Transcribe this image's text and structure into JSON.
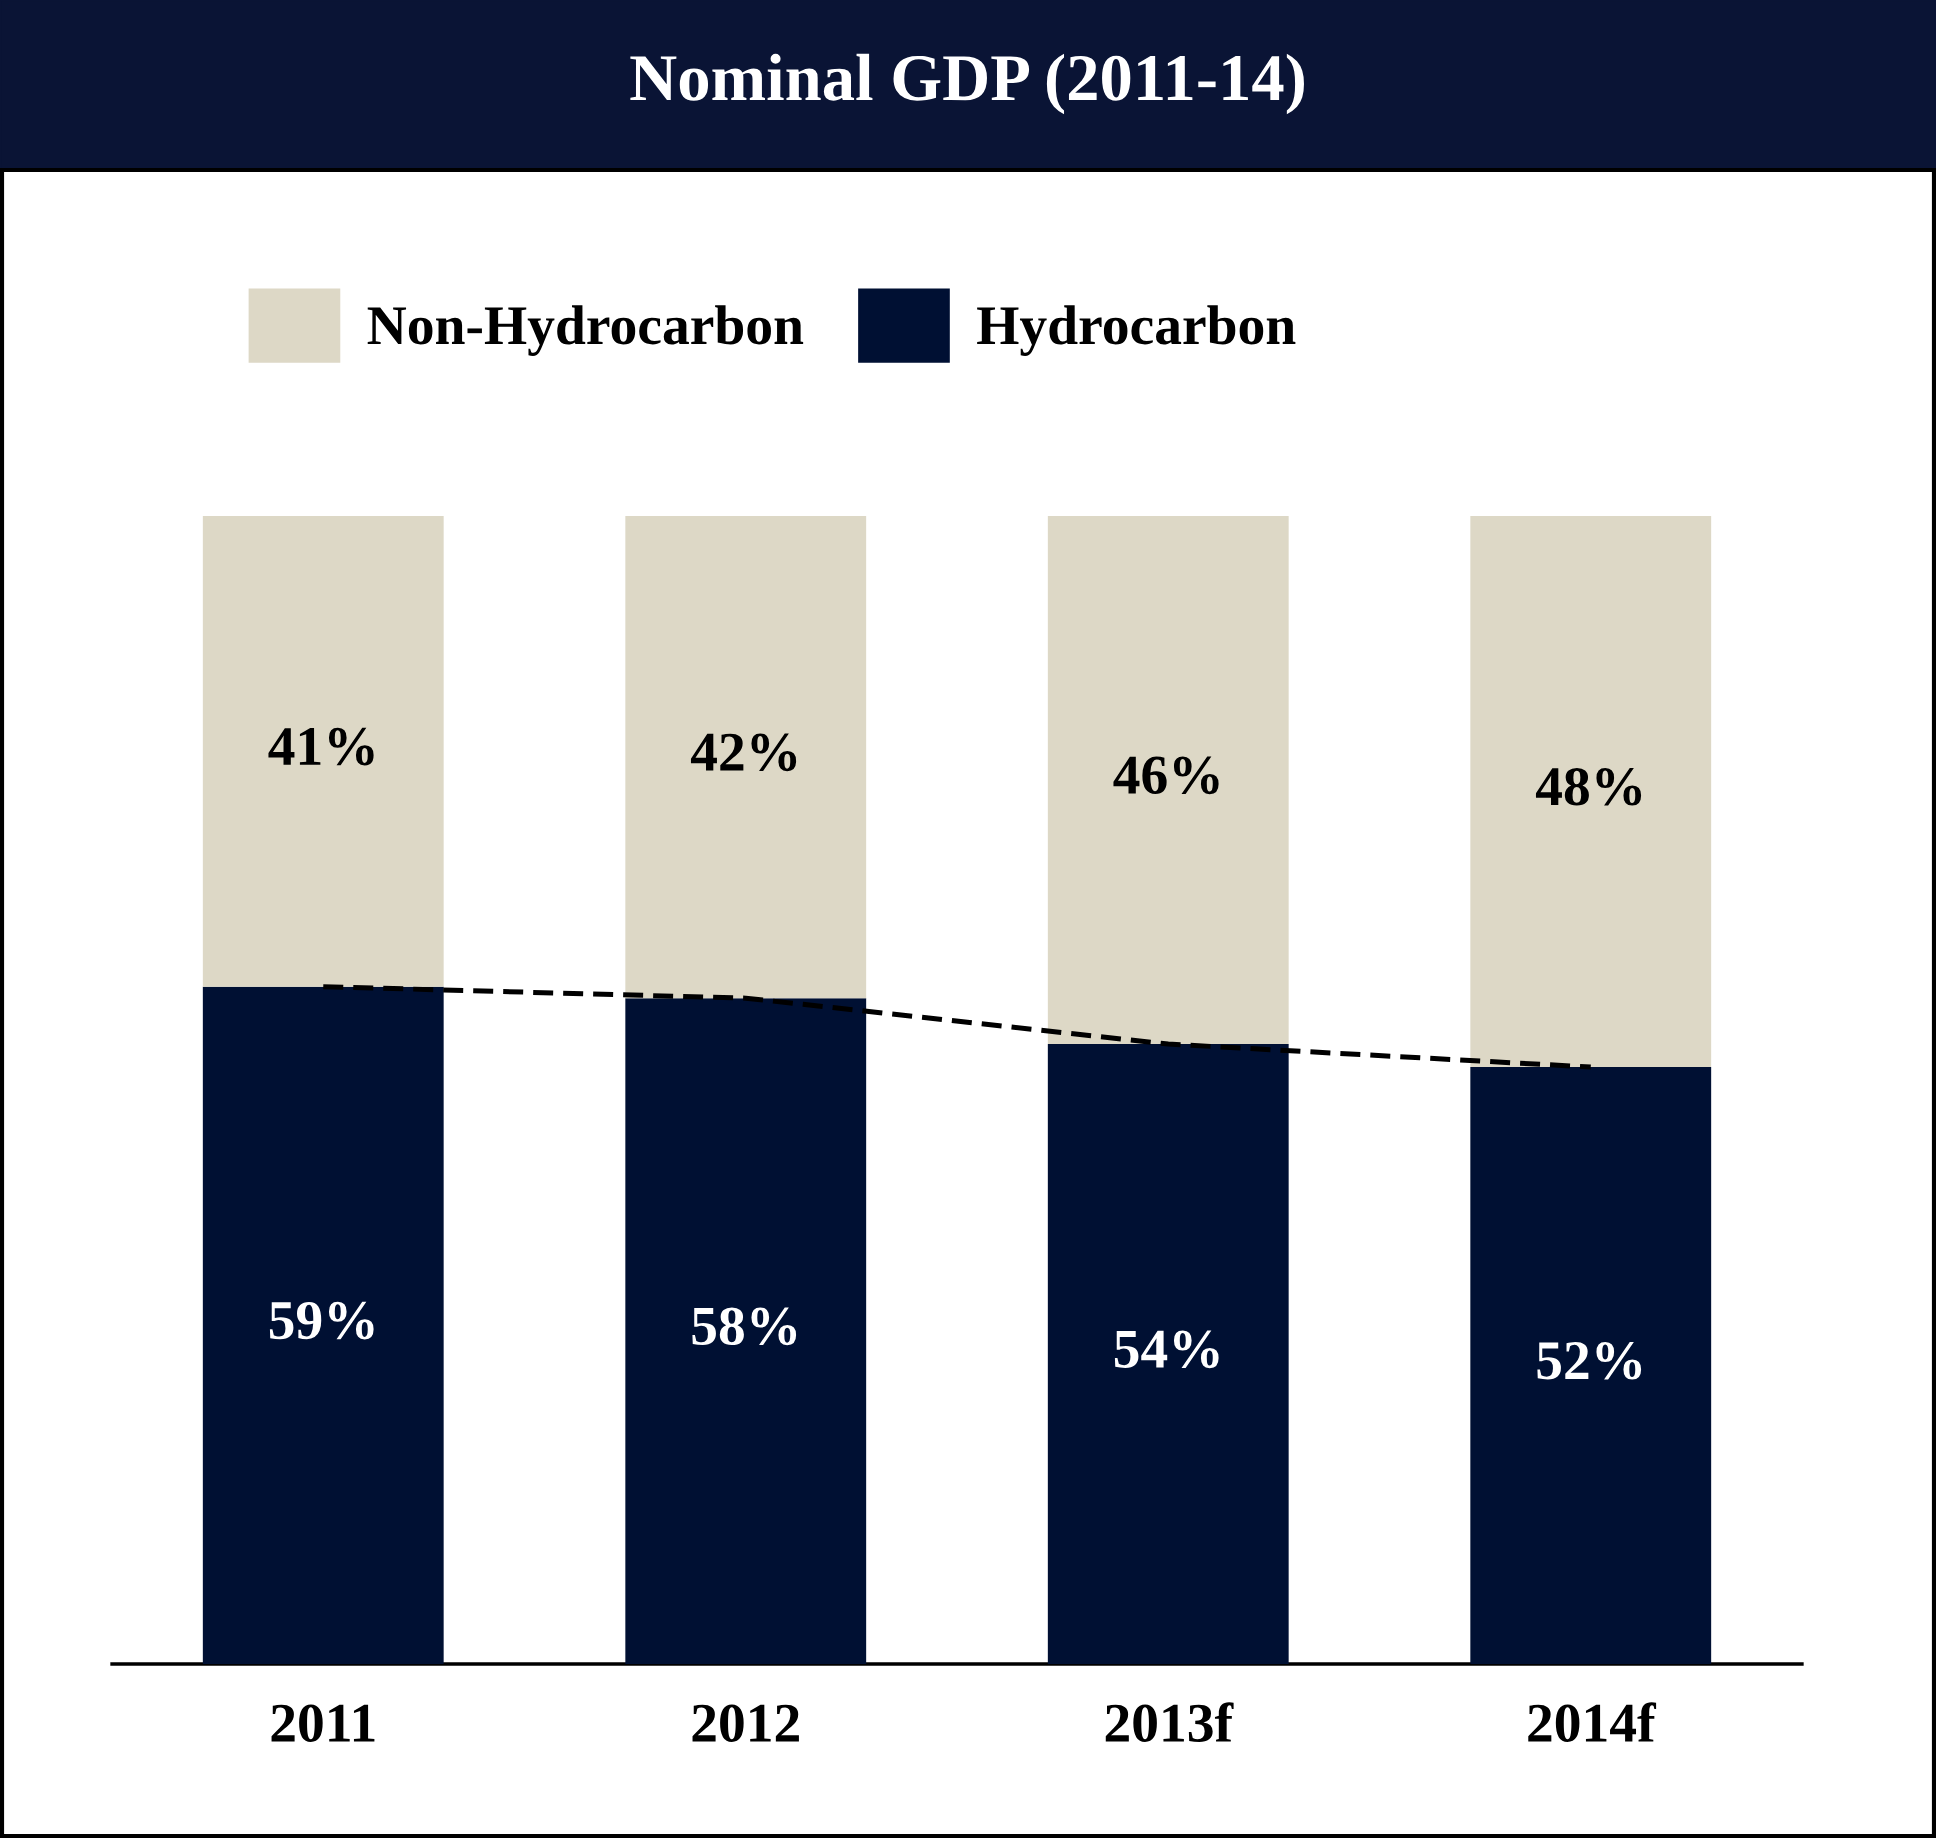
{
  "chart_data": {
    "type": "bar",
    "title": "Nominal GDP (2011-14)",
    "categories": [
      "2011",
      "2012",
      "2013f",
      "2014f"
    ],
    "stacked": true,
    "legend": "top left",
    "grid": false,
    "tick_labels": "x",
    "series": [
      {
        "name": "Hydrocarbon",
        "color": "#001033",
        "values": [
          59,
          58,
          54,
          52
        ],
        "value_labels": [
          "59%",
          "58%",
          "54%",
          "52%"
        ]
      },
      {
        "name": "Non-Hydrocarbon",
        "color": "#ddd8c6",
        "values": [
          41,
          42,
          46,
          48
        ],
        "value_labels": [
          "41%",
          "42%",
          "46%",
          "48%"
        ]
      },
      {
        "type": "line",
        "color": "#000000",
        "line_style": "dashed",
        "marker": "none",
        "values": [
          59,
          58,
          54,
          52
        ]
      }
    ]
  }
}
